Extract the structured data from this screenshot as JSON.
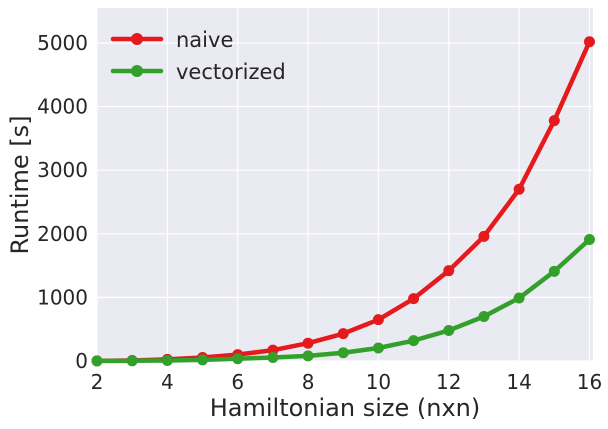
{
  "chart_data": {
    "type": "line",
    "xlabel": "Hamiltonian size (nxn)",
    "ylabel": "Runtime [s]",
    "x": [
      2,
      3,
      4,
      5,
      6,
      7,
      8,
      9,
      10,
      11,
      12,
      13,
      14,
      15,
      16
    ],
    "xlim": [
      2,
      16.1
    ],
    "ylim": [
      0,
      5550
    ],
    "xticks": [
      2,
      4,
      6,
      8,
      10,
      12,
      14,
      16
    ],
    "yticks": [
      0,
      1000,
      2000,
      3000,
      4000,
      5000
    ],
    "grid": true,
    "legend_position": "top-left",
    "series": [
      {
        "name": "naive",
        "color": "#e41a1c",
        "values": [
          2,
          8,
          25,
          55,
          100,
          170,
          280,
          430,
          650,
          980,
          1420,
          1960,
          2700,
          3780,
          5020
        ]
      },
      {
        "name": "vectorized",
        "color": "#33a02c",
        "values": [
          1,
          3,
          8,
          18,
          35,
          55,
          80,
          130,
          205,
          320,
          480,
          700,
          990,
          1410,
          1910
        ]
      }
    ]
  },
  "colors": {
    "plot_background": "#eaeaf2",
    "grid": "#ffffff",
    "text": "#262626"
  }
}
